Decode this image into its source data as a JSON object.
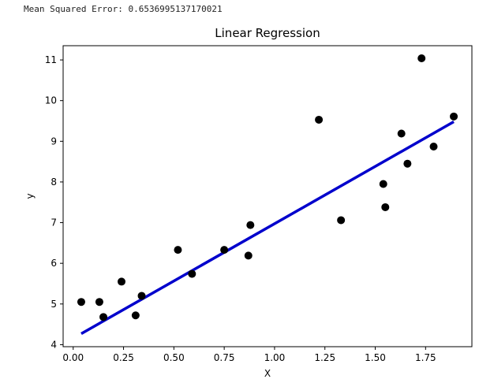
{
  "output_text": "Mean Squared Error: 0.6536995137170021",
  "chart_data": {
    "type": "scatter",
    "title": "Linear Regression",
    "xlabel": "X",
    "ylabel": "y",
    "xlim": [
      -0.05,
      1.98
    ],
    "ylim": [
      3.95,
      11.35
    ],
    "xticks": [
      0.0,
      0.25,
      0.5,
      0.75,
      1.0,
      1.25,
      1.5,
      1.75
    ],
    "xtick_labels": [
      "0.00",
      "0.25",
      "0.50",
      "0.75",
      "1.00",
      "1.25",
      "1.50",
      "1.75"
    ],
    "yticks": [
      4,
      5,
      6,
      7,
      8,
      9,
      10,
      11
    ],
    "ytick_labels": [
      "4",
      "5",
      "6",
      "7",
      "8",
      "9",
      "10",
      "11"
    ],
    "grid": false,
    "series": [
      {
        "kind": "scatter",
        "color": "#000000",
        "points": [
          {
            "x": 0.04,
            "y": 5.05
          },
          {
            "x": 0.13,
            "y": 5.05
          },
          {
            "x": 0.15,
            "y": 4.68
          },
          {
            "x": 0.24,
            "y": 5.55
          },
          {
            "x": 0.31,
            "y": 4.72
          },
          {
            "x": 0.34,
            "y": 5.2
          },
          {
            "x": 0.52,
            "y": 6.33
          },
          {
            "x": 0.59,
            "y": 5.74
          },
          {
            "x": 0.75,
            "y": 6.33
          },
          {
            "x": 0.87,
            "y": 6.19
          },
          {
            "x": 0.88,
            "y": 6.94
          },
          {
            "x": 1.22,
            "y": 9.53
          },
          {
            "x": 1.33,
            "y": 7.06
          },
          {
            "x": 1.54,
            "y": 7.95
          },
          {
            "x": 1.55,
            "y": 7.38
          },
          {
            "x": 1.63,
            "y": 9.19
          },
          {
            "x": 1.66,
            "y": 8.45
          },
          {
            "x": 1.73,
            "y": 11.04
          },
          {
            "x": 1.79,
            "y": 8.87
          },
          {
            "x": 1.89,
            "y": 9.61
          }
        ]
      },
      {
        "kind": "line",
        "color": "#0000cc",
        "points": [
          {
            "x": 0.04,
            "y": 4.27
          },
          {
            "x": 1.89,
            "y": 9.48
          }
        ]
      }
    ]
  }
}
